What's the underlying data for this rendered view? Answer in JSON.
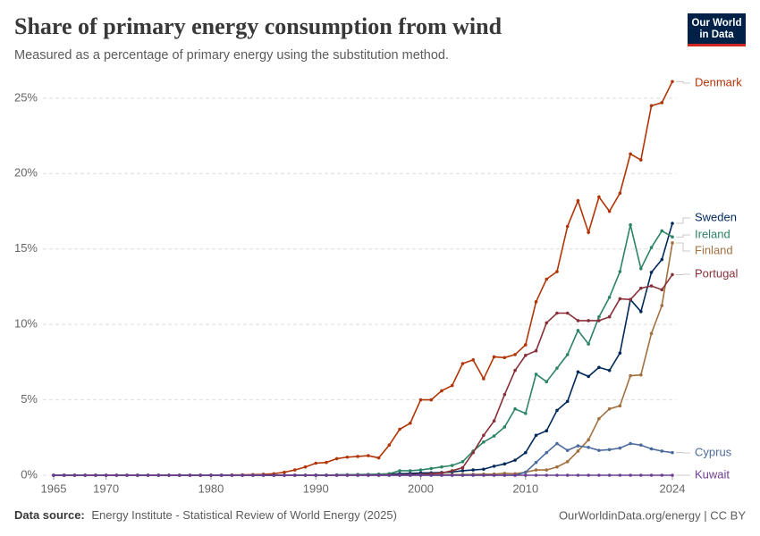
{
  "chart_data": {
    "type": "line",
    "title": "Share of primary energy consumption from wind",
    "subtitle": "Measured as a percentage of primary energy using the substitution method.",
    "logo": [
      "Our World",
      "in Data"
    ],
    "source_label": "Data source:",
    "source": "Energy Institute - Statistical Review of World Energy (2025)",
    "credit": "OurWorldinData.org/energy | CC BY",
    "x": [
      1965,
      1966,
      1967,
      1968,
      1969,
      1970,
      1971,
      1972,
      1973,
      1974,
      1975,
      1976,
      1977,
      1978,
      1979,
      1980,
      1981,
      1982,
      1983,
      1984,
      1985,
      1986,
      1987,
      1988,
      1989,
      1990,
      1991,
      1992,
      1993,
      1994,
      1995,
      1996,
      1997,
      1998,
      1999,
      2000,
      2001,
      2002,
      2003,
      2004,
      2005,
      2006,
      2007,
      2008,
      2009,
      2010,
      2011,
      2012,
      2013,
      2014,
      2015,
      2016,
      2017,
      2018,
      2019,
      2020,
      2021,
      2022,
      2023,
      2024
    ],
    "xlim": [
      1965,
      2024
    ],
    "xticks": [
      1965,
      1970,
      1980,
      1990,
      2000,
      2010,
      2024
    ],
    "ylim": [
      0,
      26
    ],
    "yticks": [
      {
        "value": 0,
        "label": "0%"
      },
      {
        "value": 5,
        "label": "5%"
      },
      {
        "value": 10,
        "label": "10%"
      },
      {
        "value": 15,
        "label": "15%"
      },
      {
        "value": 20,
        "label": "20%"
      },
      {
        "value": 25,
        "label": "25%"
      }
    ],
    "grid": true,
    "series": [
      {
        "name": "Denmark",
        "color": "#b13507",
        "values": [
          0,
          0,
          0,
          0,
          0,
          0,
          0,
          0,
          0,
          0,
          0,
          0,
          0,
          0,
          0,
          0.01,
          0.01,
          0.02,
          0.03,
          0.04,
          0.06,
          0.1,
          0.2,
          0.35,
          0.55,
          0.8,
          0.85,
          1.1,
          1.2,
          1.25,
          1.3,
          1.15,
          2.0,
          3.05,
          3.45,
          5.0,
          5.0,
          5.6,
          5.95,
          7.4,
          7.65,
          6.4,
          7.85,
          7.8,
          8.0,
          8.65,
          11.5,
          13.0,
          13.5,
          16.5,
          18.2,
          16.1,
          18.45,
          17.5,
          18.7,
          21.3,
          20.9,
          24.5,
          24.7,
          26.1
        ]
      },
      {
        "name": "Sweden",
        "color": "#00295b",
        "values": [
          0,
          0,
          0,
          0,
          0,
          0,
          0,
          0,
          0,
          0,
          0,
          0,
          0,
          0,
          0,
          0,
          0,
          0,
          0,
          0,
          0,
          0,
          0,
          0,
          0,
          0.01,
          0.01,
          0.02,
          0.03,
          0.04,
          0.05,
          0.06,
          0.07,
          0.1,
          0.12,
          0.15,
          0.16,
          0.18,
          0.22,
          0.3,
          0.35,
          0.4,
          0.6,
          0.75,
          1.0,
          1.5,
          2.65,
          2.95,
          4.3,
          4.9,
          6.85,
          6.55,
          7.15,
          6.95,
          8.1,
          11.65,
          10.85,
          13.45,
          14.3,
          16.7
        ]
      },
      {
        "name": "Ireland",
        "color": "#2c8465",
        "values": [
          0,
          0,
          0,
          0,
          0,
          0,
          0,
          0,
          0,
          0,
          0,
          0,
          0,
          0,
          0,
          0,
          0,
          0,
          0,
          0,
          0,
          0,
          0,
          0,
          0,
          0,
          0,
          0.02,
          0.03,
          0.05,
          0.05,
          0.07,
          0.1,
          0.3,
          0.3,
          0.35,
          0.45,
          0.55,
          0.65,
          0.9,
          1.6,
          2.2,
          2.6,
          3.2,
          4.4,
          4.1,
          6.7,
          6.2,
          7.1,
          8.0,
          9.6,
          8.7,
          10.5,
          11.8,
          13.5,
          16.6,
          13.7,
          15.1,
          16.2,
          15.8
        ]
      },
      {
        "name": "Finland",
        "color": "#a2703f",
        "values": [
          0,
          0,
          0,
          0,
          0,
          0,
          0,
          0,
          0,
          0,
          0,
          0,
          0,
          0,
          0,
          0,
          0,
          0,
          0,
          0,
          0,
          0,
          0,
          0,
          0,
          0,
          0,
          0,
          0.01,
          0.01,
          0.01,
          0.01,
          0.01,
          0.01,
          0.01,
          0.03,
          0.03,
          0.04,
          0.04,
          0.05,
          0.06,
          0.07,
          0.08,
          0.12,
          0.1,
          0.2,
          0.35,
          0.35,
          0.55,
          0.9,
          1.6,
          2.35,
          3.75,
          4.4,
          4.6,
          6.6,
          6.65,
          9.4,
          11.25,
          15.4
        ]
      },
      {
        "name": "Portugal",
        "color": "#883039",
        "values": [
          0,
          0,
          0,
          0,
          0,
          0,
          0,
          0,
          0,
          0,
          0,
          0,
          0,
          0,
          0,
          0,
          0,
          0,
          0,
          0,
          0,
          0,
          0,
          0,
          0,
          0,
          0,
          0,
          0,
          0.01,
          0.01,
          0.01,
          0.02,
          0.03,
          0.04,
          0.05,
          0.1,
          0.15,
          0.3,
          0.5,
          1.5,
          2.65,
          3.6,
          5.35,
          6.95,
          7.95,
          8.25,
          10.1,
          10.75,
          10.75,
          10.25,
          10.25,
          10.25,
          10.5,
          11.7,
          11.65,
          12.4,
          12.55,
          12.3,
          13.3
        ]
      },
      {
        "name": "Cyprus",
        "color": "#4c6a9c",
        "values": [
          0,
          0,
          0,
          0,
          0,
          0,
          0,
          0,
          0,
          0,
          0,
          0,
          0,
          0,
          0,
          0,
          0,
          0,
          0,
          0,
          0,
          0,
          0,
          0,
          0,
          0,
          0,
          0,
          0,
          0,
          0,
          0,
          0,
          0,
          0,
          0,
          0,
          0,
          0,
          0,
          0,
          0,
          0,
          0,
          0,
          0.2,
          0.85,
          1.5,
          2.1,
          1.65,
          1.95,
          1.85,
          1.65,
          1.7,
          1.8,
          2.1,
          2.0,
          1.75,
          1.6,
          1.5
        ]
      },
      {
        "name": "Kuwait",
        "color": "#6d3e91",
        "values": [
          0,
          0,
          0,
          0,
          0,
          0,
          0,
          0,
          0,
          0,
          0,
          0,
          0,
          0,
          0,
          0,
          0,
          0,
          0,
          0,
          0,
          0,
          0,
          0,
          0,
          0,
          0,
          0,
          0,
          0,
          0,
          0,
          0,
          0,
          0,
          0,
          0,
          0,
          0,
          0,
          0,
          0,
          0,
          0,
          0,
          0,
          0,
          0,
          0,
          0,
          0,
          0,
          0,
          0,
          0,
          0,
          0,
          0,
          0,
          0
        ]
      }
    ]
  }
}
